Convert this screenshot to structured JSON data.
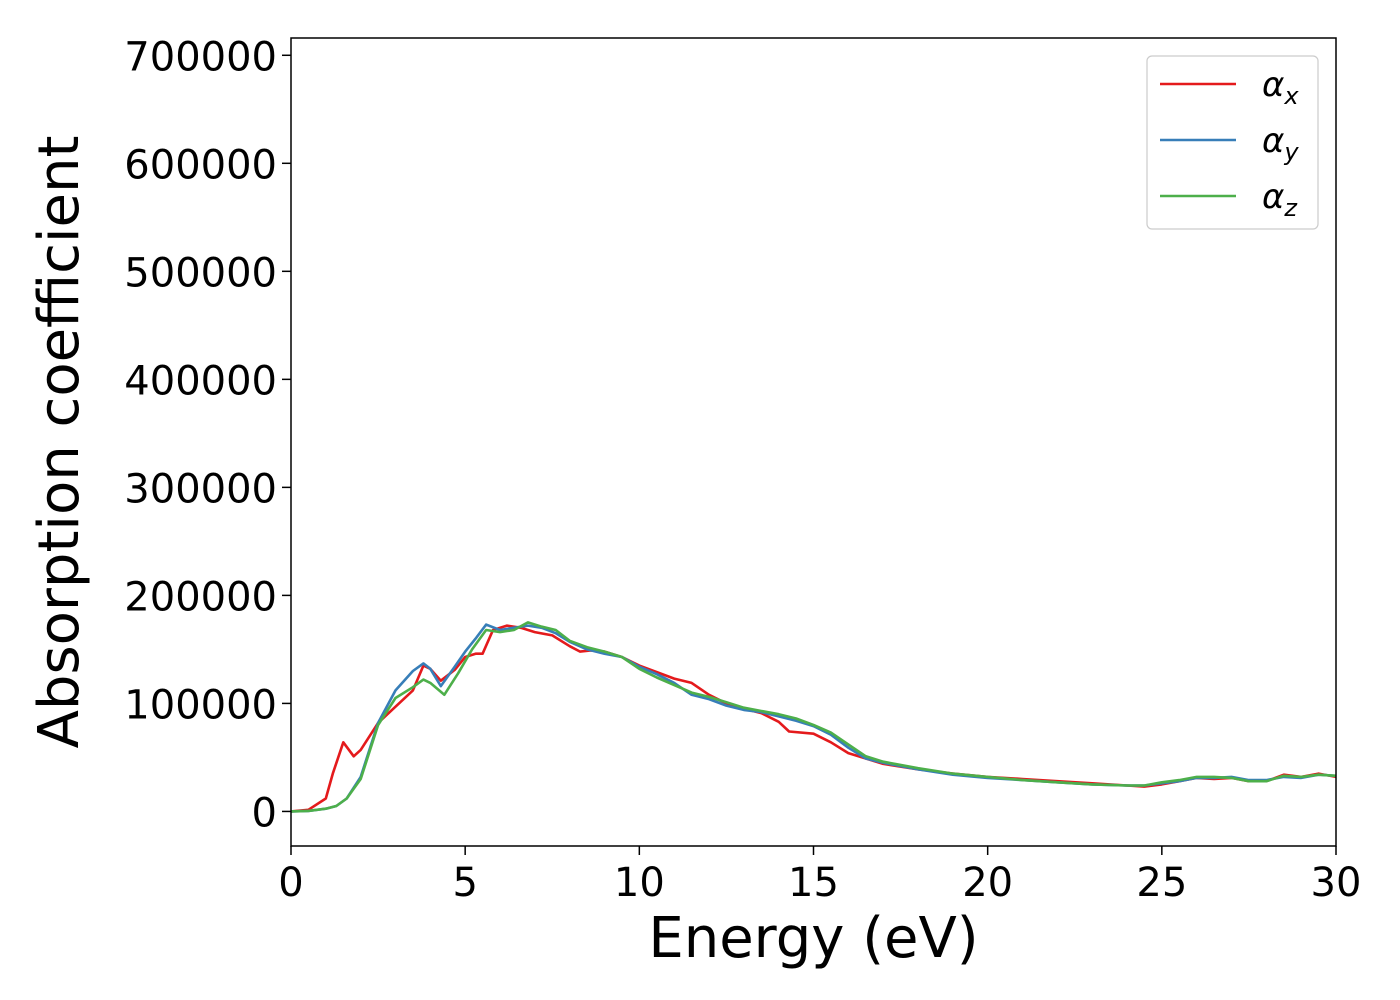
{
  "chart_data": {
    "type": "line",
    "xlabel": "Energy (eV)",
    "ylabel": "Absorption coefficient",
    "xlim": [
      0,
      30
    ],
    "ylim": [
      -32000,
      716000
    ],
    "xticks": [
      "0",
      "5",
      "10",
      "15",
      "20",
      "25",
      "30"
    ],
    "yticks": [
      "0",
      "100000",
      "200000",
      "300000",
      "400000",
      "500000",
      "600000",
      "700000"
    ],
    "grid": false,
    "legend": "top-right",
    "series": [
      {
        "name": "α",
        "subscript": "x",
        "color": "#e41a1c",
        "x": [
          0,
          0.5,
          1.0,
          1.2,
          1.5,
          1.8,
          2.0,
          2.5,
          3.0,
          3.5,
          3.8,
          4.0,
          4.3,
          4.7,
          5.0,
          5.3,
          5.5,
          5.8,
          6.2,
          6.6,
          7.0,
          7.5,
          8.0,
          8.3,
          8.6,
          9.0,
          9.5,
          10.0,
          10.5,
          11.0,
          11.5,
          12.0,
          12.5,
          13.0,
          13.5,
          14.0,
          14.3,
          15.0,
          15.5,
          16.0,
          16.5,
          17.0,
          18.0,
          19.0,
          20.0,
          21.0,
          22.0,
          23.0,
          24.0,
          24.5,
          25.0,
          25.5,
          26.0,
          26.5,
          27.0,
          27.5,
          28.0,
          28.5,
          29.0,
          29.5,
          30.0
        ],
        "y": [
          0,
          1500,
          12000,
          35000,
          64000,
          51000,
          57000,
          82000,
          97000,
          112000,
          135000,
          132000,
          121000,
          131000,
          143000,
          146000,
          146000,
          168000,
          172000,
          170000,
          166000,
          163000,
          153000,
          148000,
          149000,
          148000,
          143000,
          135000,
          129000,
          123000,
          119000,
          108000,
          100000,
          95000,
          91000,
          83000,
          74000,
          72000,
          64000,
          54000,
          49000,
          44000,
          39000,
          35000,
          32000,
          30000,
          28000,
          26000,
          24000,
          23000,
          25000,
          28000,
          31000,
          30000,
          31000,
          28000,
          28000,
          34000,
          32000,
          35000,
          32000
        ]
      },
      {
        "name": "α",
        "subscript": "y",
        "color": "#377eb8",
        "x": [
          0,
          0.5,
          1.0,
          1.3,
          1.6,
          2.0,
          2.5,
          3.0,
          3.5,
          3.8,
          4.0,
          4.3,
          4.7,
          5.0,
          5.3,
          5.6,
          6.0,
          6.4,
          6.8,
          7.2,
          7.6,
          8.0,
          8.5,
          9.0,
          9.5,
          10.0,
          10.5,
          11.0,
          11.5,
          12.0,
          12.5,
          13.0,
          13.5,
          14.0,
          14.5,
          15.0,
          15.5,
          16.0,
          16.5,
          17.0,
          18.0,
          19.0,
          20.0,
          21.0,
          22.0,
          23.0,
          24.0,
          24.5,
          25.0,
          25.5,
          26.0,
          26.5,
          27.0,
          27.5,
          28.0,
          28.5,
          29.0,
          29.5,
          30.0
        ],
        "y": [
          0,
          500,
          2500,
          5000,
          12000,
          32000,
          82000,
          112000,
          130000,
          137000,
          132000,
          116000,
          134000,
          148000,
          160000,
          173000,
          168000,
          170000,
          172000,
          170000,
          165000,
          157000,
          150000,
          146000,
          143000,
          134000,
          127000,
          119000,
          108000,
          104000,
          98000,
          94000,
          92000,
          88000,
          84000,
          79000,
          71000,
          59000,
          49000,
          45000,
          39000,
          34000,
          31000,
          29000,
          27000,
          25000,
          24000,
          24000,
          26000,
          28000,
          31000,
          31000,
          32000,
          29000,
          29000,
          32000,
          31000,
          34000,
          33000
        ]
      },
      {
        "name": "α",
        "subscript": "z",
        "color": "#4daf4a",
        "x": [
          0,
          0.5,
          1.0,
          1.3,
          1.6,
          2.0,
          2.5,
          3.0,
          3.5,
          3.8,
          4.0,
          4.4,
          4.8,
          5.2,
          5.6,
          6.0,
          6.4,
          6.8,
          7.2,
          7.6,
          8.0,
          8.5,
          9.0,
          9.5,
          10.0,
          10.5,
          11.0,
          11.5,
          12.0,
          12.5,
          13.0,
          13.5,
          14.0,
          14.5,
          15.0,
          15.5,
          16.0,
          16.5,
          17.0,
          18.0,
          19.0,
          20.0,
          21.0,
          22.0,
          23.0,
          24.0,
          24.5,
          25.0,
          25.5,
          26.0,
          26.5,
          27.0,
          27.5,
          28.0,
          28.5,
          29.0,
          29.5,
          30.0
        ],
        "y": [
          0,
          500,
          2500,
          5000,
          12000,
          30000,
          80000,
          105000,
          115000,
          122000,
          119000,
          108000,
          128000,
          150000,
          168000,
          166000,
          168000,
          175000,
          171000,
          168000,
          158000,
          152000,
          148000,
          143000,
          132000,
          124000,
          117000,
          110000,
          106000,
          101000,
          96000,
          93000,
          90000,
          86000,
          80000,
          73000,
          62000,
          51000,
          46000,
          40000,
          35000,
          32000,
          29000,
          27000,
          25000,
          24000,
          24000,
          27000,
          29000,
          32000,
          32000,
          31000,
          28000,
          28000,
          33000,
          32000,
          34000,
          33000
        ]
      }
    ]
  }
}
